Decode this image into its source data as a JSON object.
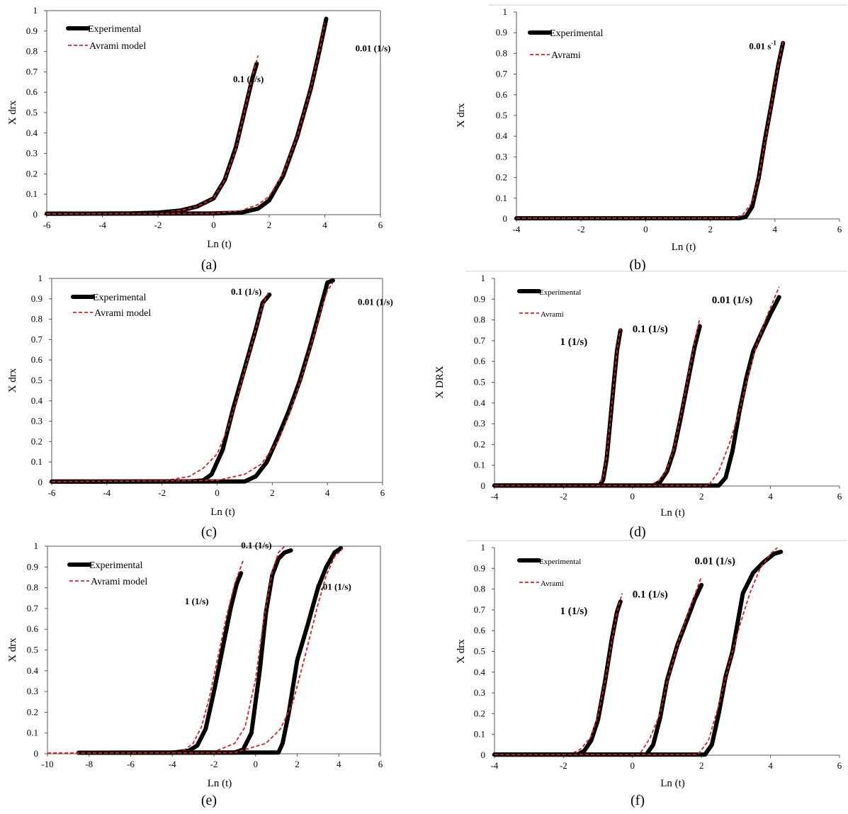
{
  "colors": {
    "experimental": "#000000",
    "avrami": "#e8191f",
    "axis": "#555555"
  },
  "chart_data": [
    {
      "panel": "(a)",
      "type": "line",
      "xlabel": "Ln (t)",
      "ylabel": "X drx",
      "xlim": [
        -6,
        6
      ],
      "ylim": [
        0,
        1
      ],
      "xticks": [
        -6,
        -4,
        -2,
        0,
        2,
        4,
        6
      ],
      "yticks": [
        0,
        0.1,
        0.2,
        0.3,
        0.4,
        0.5,
        0.6,
        0.7,
        0.8,
        0.9,
        1
      ],
      "grid": false,
      "legend_position": "top-left",
      "legend": [
        "Experimental",
        "Avrami model"
      ],
      "series": [
        {
          "label": "0.1 (1/s)",
          "style": "experimental",
          "x": [
            -6,
            -3,
            -2,
            -1.2,
            -0.6,
            0,
            0.4,
            0.8,
            1.1,
            1.4,
            1.55
          ],
          "y": [
            0.005,
            0.006,
            0.01,
            0.02,
            0.04,
            0.08,
            0.17,
            0.33,
            0.5,
            0.67,
            0.74
          ]
        },
        {
          "label": "0.1 (1/s)",
          "style": "avrami",
          "x": [
            -6,
            -3,
            -2,
            -1.2,
            -0.6,
            0,
            0.4,
            0.8,
            1.1,
            1.4,
            1.6
          ],
          "y": [
            0.004,
            0.005,
            0.009,
            0.02,
            0.04,
            0.08,
            0.17,
            0.32,
            0.5,
            0.68,
            0.78
          ]
        },
        {
          "label": "0.01 (1/s)",
          "style": "experimental",
          "x": [
            -6,
            0,
            1,
            1.6,
            2,
            2.5,
            3,
            3.5,
            3.8,
            4.05
          ],
          "y": [
            0.005,
            0.006,
            0.01,
            0.03,
            0.07,
            0.19,
            0.38,
            0.62,
            0.8,
            0.96
          ]
        },
        {
          "label": "0.01 (1/s)",
          "style": "avrami",
          "x": [
            -6,
            0,
            1,
            1.6,
            2,
            2.5,
            3,
            3.5,
            3.8,
            4.0
          ],
          "y": [
            0.004,
            0.006,
            0.02,
            0.05,
            0.09,
            0.2,
            0.38,
            0.62,
            0.8,
            0.94
          ]
        }
      ],
      "annotations": [
        {
          "text": "0.1 (1/s)",
          "x": 0.7,
          "y": 0.65
        },
        {
          "text": "0.01 (1/s)",
          "x": 5.1,
          "y": 0.8
        }
      ]
    },
    {
      "panel": "(b)",
      "type": "line",
      "xlabel": "Ln (t)",
      "ylabel": "X drx",
      "xlim": [
        -4,
        6
      ],
      "ylim": [
        0,
        1
      ],
      "xticks": [
        -4,
        -2,
        0,
        2,
        4,
        6
      ],
      "yticks": [
        0,
        0.1,
        0.2,
        0.3,
        0.4,
        0.5,
        0.6,
        0.7,
        0.8,
        0.9,
        1
      ],
      "grid": false,
      "legend_position": "top-left",
      "legend": [
        "Experimental",
        "Avrami"
      ],
      "series": [
        {
          "label": "0.01 s-1",
          "style": "experimental",
          "x": [
            -4,
            2.9,
            3.1,
            3.3,
            3.5,
            3.7,
            3.9,
            4.1,
            4.25
          ],
          "y": [
            0.003,
            0.003,
            0.01,
            0.06,
            0.2,
            0.39,
            0.56,
            0.74,
            0.85
          ]
        },
        {
          "label": "0.01 s-1",
          "style": "avrami",
          "x": [
            -4,
            2.7,
            3.0,
            3.3,
            3.5,
            3.7,
            3.9,
            4.1,
            4.25
          ],
          "y": [
            0.003,
            0.003,
            0.02,
            0.08,
            0.2,
            0.38,
            0.56,
            0.74,
            0.86
          ]
        }
      ],
      "annotations": [
        {
          "text": "0.01 s",
          "superscript": "-1",
          "x": 3.2,
          "y": 0.82
        }
      ]
    },
    {
      "panel": "(c)",
      "type": "line",
      "xlabel": "Ln (t)",
      "ylabel": "X drx",
      "xlim": [
        -6,
        6
      ],
      "ylim": [
        0,
        1
      ],
      "xticks": [
        -6,
        -4,
        -2,
        0,
        2,
        4,
        6
      ],
      "yticks": [
        0,
        0.1,
        0.2,
        0.3,
        0.4,
        0.5,
        0.6,
        0.7,
        0.8,
        0.9,
        1
      ],
      "grid": false,
      "legend_position": "top-left",
      "legend": [
        "Experimental",
        "Avrami model"
      ],
      "series": [
        {
          "label": "0.1 (1/s)",
          "style": "experimental",
          "x": [
            -6,
            -1,
            -0.5,
            -0.2,
            0.2,
            0.6,
            1,
            1.4,
            1.65,
            1.9
          ],
          "y": [
            0.004,
            0.005,
            0.01,
            0.04,
            0.16,
            0.37,
            0.56,
            0.75,
            0.88,
            0.92
          ]
        },
        {
          "label": "0.1 (1/s)",
          "style": "avrami",
          "x": [
            -6,
            -2,
            -1,
            -0.5,
            0,
            0.4,
            0.8,
            1.2,
            1.6,
            1.85
          ],
          "y": [
            0.004,
            0.006,
            0.03,
            0.07,
            0.14,
            0.27,
            0.45,
            0.65,
            0.85,
            0.93
          ]
        },
        {
          "label": "0.01 (1/s)",
          "style": "experimental",
          "x": [
            -6,
            1,
            1.4,
            1.8,
            2.2,
            2.6,
            3,
            3.4,
            3.8,
            4.0,
            4.2
          ],
          "y": [
            0.004,
            0.005,
            0.03,
            0.1,
            0.22,
            0.35,
            0.5,
            0.68,
            0.88,
            0.98,
            0.99
          ]
        },
        {
          "label": "0.01 (1/s)",
          "style": "avrami",
          "x": [
            -6,
            0,
            1,
            1.6,
            2.2,
            2.6,
            3,
            3.4,
            3.8,
            4.0,
            4.2
          ],
          "y": [
            0.004,
            0.01,
            0.04,
            0.09,
            0.2,
            0.33,
            0.49,
            0.67,
            0.86,
            0.94,
            0.98
          ]
        }
      ],
      "annotations": [
        {
          "text": "0.1 (1/s)",
          "x": 0.5,
          "y": 0.92
        },
        {
          "text": "0.01 (1/s)",
          "x": 5.1,
          "y": 0.87
        }
      ]
    },
    {
      "panel": "(d)",
      "type": "line",
      "xlabel": "Ln (t)",
      "ylabel": "X DRX",
      "xlim": [
        -4,
        6
      ],
      "ylim": [
        0,
        1
      ],
      "xticks": [
        -4,
        -2,
        0,
        2,
        4,
        6
      ],
      "yticks": [
        0,
        0.1,
        0.2,
        0.3,
        0.4,
        0.5,
        0.6,
        0.7,
        0.8,
        0.9,
        1
      ],
      "grid": false,
      "legend_position": "top-left",
      "legend": [
        "Experimental",
        "Avrami"
      ],
      "series": [
        {
          "label": "1 (1/s)",
          "style": "experimental",
          "x": [
            -4,
            -0.95,
            -0.85,
            -0.75,
            -0.65,
            -0.55,
            -0.45,
            -0.35
          ],
          "y": [
            0.002,
            0.002,
            0.03,
            0.13,
            0.3,
            0.48,
            0.65,
            0.75
          ]
        },
        {
          "label": "1 (1/s)",
          "style": "avrami",
          "x": [
            -4,
            -1.0,
            -0.85,
            -0.75,
            -0.65,
            -0.55,
            -0.45,
            -0.35
          ],
          "y": [
            0.002,
            0.002,
            0.04,
            0.14,
            0.3,
            0.48,
            0.65,
            0.76
          ]
        },
        {
          "label": "0.1 (1/s)",
          "style": "experimental",
          "x": [
            -4,
            0.6,
            0.8,
            1.0,
            1.2,
            1.4,
            1.6,
            1.8,
            1.95
          ],
          "y": [
            0.002,
            0.002,
            0.02,
            0.07,
            0.17,
            0.33,
            0.5,
            0.67,
            0.77
          ]
        },
        {
          "label": "0.1 (1/s)",
          "style": "avrami",
          "x": [
            -4,
            0.5,
            0.8,
            1.0,
            1.2,
            1.4,
            1.6,
            1.8,
            1.95
          ],
          "y": [
            0.002,
            0.002,
            0.03,
            0.08,
            0.18,
            0.34,
            0.51,
            0.69,
            0.81
          ]
        },
        {
          "label": "0.01 (1/s)",
          "style": "experimental",
          "x": [
            -4,
            2.5,
            2.7,
            2.9,
            3.1,
            3.3,
            3.5,
            3.8,
            4.0,
            4.25
          ],
          "y": [
            0.002,
            0.002,
            0.04,
            0.17,
            0.36,
            0.52,
            0.65,
            0.76,
            0.83,
            0.91
          ]
        },
        {
          "label": "0.01 (1/s)",
          "style": "avrami",
          "x": [
            -4,
            2.2,
            2.5,
            2.8,
            3.1,
            3.3,
            3.6,
            3.9,
            4.1,
            4.25
          ],
          "y": [
            0.002,
            0.002,
            0.07,
            0.2,
            0.36,
            0.5,
            0.68,
            0.82,
            0.9,
            0.96
          ]
        }
      ],
      "annotations": [
        {
          "text": "1 (1/s)",
          "x": -2.1,
          "y": 0.68
        },
        {
          "text": "0.1 (1/s)",
          "x": 0,
          "y": 0.74
        },
        {
          "text": "0.01 (1/s)",
          "x": 2.3,
          "y": 0.88
        }
      ]
    },
    {
      "panel": "(e)",
      "type": "line",
      "xlabel": "Ln (t)",
      "ylabel": "X drx",
      "xlim": [
        -10,
        6
      ],
      "ylim": [
        0,
        1
      ],
      "xticks": [
        -10,
        -8,
        -6,
        -4,
        -2,
        0,
        2,
        4,
        6
      ],
      "yticks": [
        0,
        0.1,
        0.2,
        0.3,
        0.4,
        0.5,
        0.6,
        0.7,
        0.8,
        0.9,
        1
      ],
      "grid": false,
      "legend_position": "top-left",
      "legend": [
        "Experimental",
        "Avrami model"
      ],
      "series": [
        {
          "label": "1 (1/s)",
          "style": "experimental",
          "x": [
            -8.5,
            -4,
            -3.2,
            -2.8,
            -2.4,
            -2,
            -1.6,
            -1.2,
            -0.9,
            -0.7
          ],
          "y": [
            0.005,
            0.005,
            0.015,
            0.04,
            0.12,
            0.3,
            0.5,
            0.7,
            0.82,
            0.87
          ]
        },
        {
          "label": "1 (1/s)",
          "style": "avrami",
          "x": [
            -10,
            -4,
            -3.4,
            -3,
            -2.6,
            -2.2,
            -1.8,
            -1.4,
            -1,
            -0.6
          ],
          "y": [
            0.003,
            0.004,
            0.02,
            0.05,
            0.13,
            0.28,
            0.47,
            0.66,
            0.82,
            0.93
          ]
        },
        {
          "label": "0.1 (1/s)",
          "style": "experimental",
          "x": [
            -8.5,
            -1,
            -0.6,
            -0.2,
            0.2,
            0.5,
            0.8,
            1.1,
            1.4,
            1.7
          ],
          "y": [
            0.005,
            0.006,
            0.02,
            0.1,
            0.4,
            0.68,
            0.86,
            0.94,
            0.97,
            0.98
          ]
        },
        {
          "label": "0.1 (1/s)",
          "style": "avrami",
          "x": [
            -10,
            -2,
            -1,
            -0.5,
            0,
            0.4,
            0.8,
            1.1,
            1.4
          ],
          "y": [
            0.003,
            0.01,
            0.05,
            0.13,
            0.36,
            0.65,
            0.88,
            0.97,
            1.0
          ]
        },
        {
          "label": "0.01 (1/s)",
          "style": "experimental",
          "x": [
            -8.5,
            1.1,
            1.3,
            1.6,
            2,
            2.5,
            3,
            3.4,
            3.8,
            4.1
          ],
          "y": [
            0.005,
            0.006,
            0.05,
            0.2,
            0.45,
            0.62,
            0.8,
            0.9,
            0.97,
            0.99
          ]
        },
        {
          "label": "0.01 (1/s)",
          "style": "avrami",
          "x": [
            -10,
            -1,
            0.5,
            1.2,
            1.8,
            2.4,
            3,
            3.4,
            3.8,
            4.2
          ],
          "y": [
            0.003,
            0.005,
            0.05,
            0.12,
            0.25,
            0.48,
            0.72,
            0.86,
            0.95,
            0.99
          ]
        }
      ],
      "annotations": [
        {
          "text": "1 (1/s)",
          "x": -3.4,
          "y": 0.72
        },
        {
          "text": "0.1 (1/s)",
          "x": -0.7,
          "y": 0.99
        },
        {
          "text": "0.01 (1/s)",
          "x": 2.9,
          "y": 0.79
        }
      ]
    },
    {
      "panel": "(f)",
      "type": "line",
      "xlabel": "Ln (t)",
      "ylabel": "X drx",
      "xlim": [
        -4,
        6
      ],
      "ylim": [
        0,
        1
      ],
      "xticks": [
        -4,
        -2,
        0,
        2,
        4,
        6
      ],
      "yticks": [
        0,
        0.1,
        0.2,
        0.3,
        0.4,
        0.5,
        0.6,
        0.7,
        0.8,
        0.9,
        1
      ],
      "grid": false,
      "legend_position": "top-left",
      "legend": [
        "Experimental",
        "Avrami"
      ],
      "series": [
        {
          "label": "1 (1/s)",
          "style": "experimental",
          "x": [
            -4,
            -1.6,
            -1.4,
            -1.2,
            -1.0,
            -0.8,
            -0.6,
            -0.45,
            -0.35
          ],
          "y": [
            0.003,
            0.003,
            0.02,
            0.07,
            0.17,
            0.35,
            0.56,
            0.69,
            0.74
          ]
        },
        {
          "label": "1 (1/s)",
          "style": "avrami",
          "x": [
            -4,
            -1.8,
            -1.5,
            -1.2,
            -1.0,
            -0.8,
            -0.6,
            -0.45,
            -0.3
          ],
          "y": [
            0.003,
            0.003,
            0.03,
            0.09,
            0.19,
            0.35,
            0.55,
            0.69,
            0.78
          ]
        },
        {
          "label": "0.1 (1/s)",
          "style": "experimental",
          "x": [
            -4,
            0.4,
            0.6,
            0.8,
            1.0,
            1.3,
            1.6,
            1.8,
            2.0
          ],
          "y": [
            0.003,
            0.003,
            0.05,
            0.18,
            0.36,
            0.53,
            0.66,
            0.75,
            0.82
          ]
        },
        {
          "label": "0.1 (1/s)",
          "style": "avrami",
          "x": [
            -4,
            0.2,
            0.5,
            0.8,
            1.0,
            1.3,
            1.6,
            1.8,
            2.0
          ],
          "y": [
            0.003,
            0.003,
            0.08,
            0.2,
            0.35,
            0.53,
            0.68,
            0.77,
            0.86
          ]
        },
        {
          "label": "0.01 (1/s)",
          "style": "experimental",
          "x": [
            -4,
            2.1,
            2.3,
            2.5,
            2.7,
            2.9,
            3.2,
            3.5,
            3.8,
            4.1,
            4.3
          ],
          "y": [
            0.003,
            0.003,
            0.05,
            0.2,
            0.38,
            0.5,
            0.78,
            0.88,
            0.93,
            0.97,
            0.98
          ]
        },
        {
          "label": "0.01 (1/s)",
          "style": "avrami",
          "x": [
            -4,
            1.9,
            2.2,
            2.5,
            2.8,
            3.1,
            3.4,
            3.7,
            4.0,
            4.2
          ],
          "y": [
            0.003,
            0.003,
            0.07,
            0.24,
            0.44,
            0.62,
            0.78,
            0.9,
            0.97,
            1.0
          ]
        }
      ],
      "annotations": [
        {
          "text": "1 (1/s)",
          "x": -2.1,
          "y": 0.68
        },
        {
          "text": "0.1 (1/s)",
          "x": 0,
          "y": 0.76
        },
        {
          "text": "0.01 (1/s)",
          "x": 1.8,
          "y": 0.92
        }
      ]
    }
  ]
}
